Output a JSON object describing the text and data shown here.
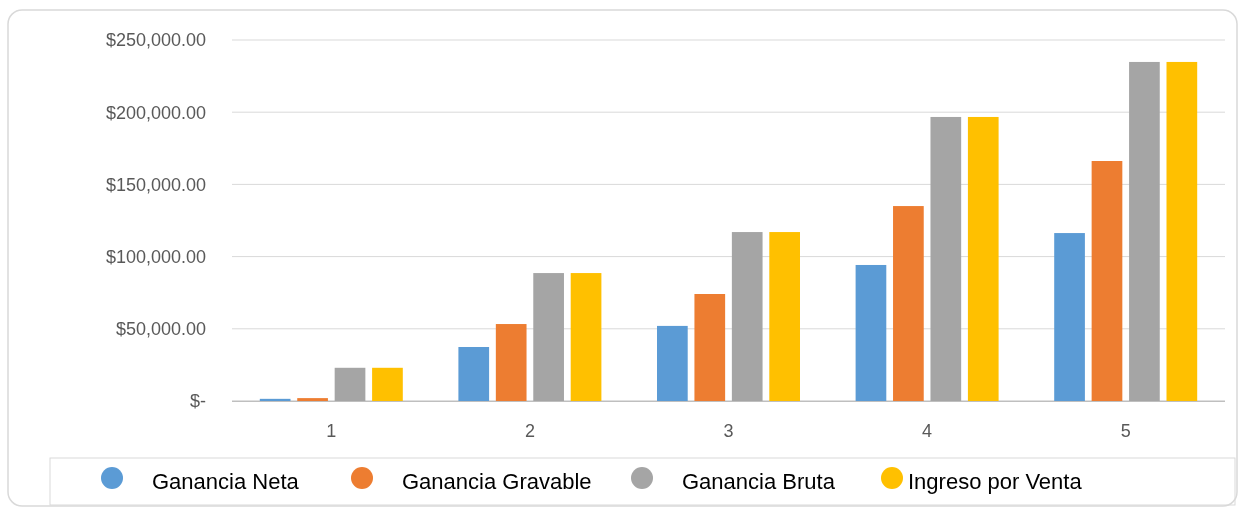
{
  "chart_data": {
    "type": "bar",
    "categories": [
      "1",
      "2",
      "3",
      "4",
      "5"
    ],
    "series": [
      {
        "name": "Ganancia Neta",
        "color": "#5b9bd5",
        "values": [
          1500,
          37400,
          52000,
          94200,
          116300
        ]
      },
      {
        "name": "Ganancia Gravable",
        "color": "#ed7d31",
        "values": [
          2000,
          53300,
          74100,
          135000,
          166200
        ]
      },
      {
        "name": "Ganancia Bruta",
        "color": "#a5a5a5",
        "values": [
          23000,
          88600,
          117000,
          196700,
          234800
        ]
      },
      {
        "name": "Ingreso por Venta",
        "color": "#ffc000",
        "values": [
          23000,
          88600,
          117000,
          196700,
          234800
        ]
      }
    ],
    "ylim": [
      0,
      250000
    ],
    "yticks": [
      {
        "value": 0,
        "label": "$-"
      },
      {
        "value": 50000,
        "label": "$50,000.00"
      },
      {
        "value": 100000,
        "label": "$100,000.00"
      },
      {
        "value": 150000,
        "label": "$150,000.00"
      },
      {
        "value": 200000,
        "label": "$200,000.00"
      },
      {
        "value": 250000,
        "label": "$250,000.00"
      }
    ],
    "grid": "y",
    "legend": "bottom",
    "marker": "circle"
  }
}
